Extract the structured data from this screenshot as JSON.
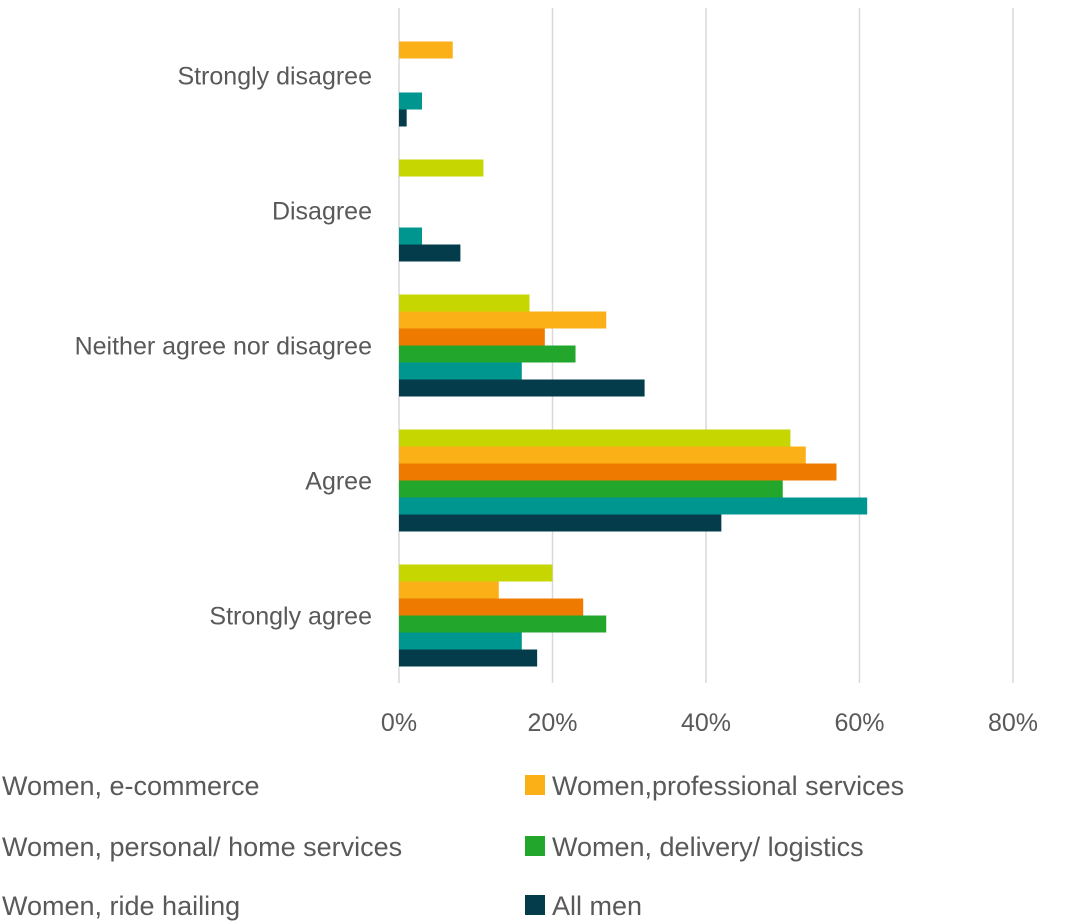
{
  "chart_data": {
    "type": "bar",
    "orientation": "horizontal",
    "title": "",
    "xlabel": "",
    "ylabel": "",
    "categories": [
      "Strongly disagree",
      "Disagree",
      "Neither agree nor disagree",
      "Agree",
      "Strongly agree"
    ],
    "x_ticks": [
      "0%",
      "20%",
      "40%",
      "60%",
      "80%"
    ],
    "xlim": [
      0,
      80
    ],
    "grid": true,
    "legend_position": "bottom",
    "series": [
      {
        "name": "Women, e-commerce",
        "color": "#c5d600",
        "values": [
          0,
          11,
          17,
          51,
          20
        ]
      },
      {
        "name": "Women,professional services",
        "color": "#fbb018",
        "values": [
          7,
          0,
          27,
          53,
          13
        ]
      },
      {
        "name": "Women, personal/ home services",
        "color": "#ee7a00",
        "values": [
          0,
          0,
          19,
          57,
          24
        ]
      },
      {
        "name": "Women, delivery/ logistics",
        "color": "#23a62c",
        "values": [
          0,
          0,
          23,
          50,
          27
        ]
      },
      {
        "name": "Women, ride hailing",
        "color": "#009690",
        "values": [
          3,
          3,
          16,
          61,
          16
        ]
      },
      {
        "name": "All men",
        "color": "#053c4b",
        "values": [
          1,
          8,
          32,
          42,
          18
        ]
      }
    ]
  }
}
